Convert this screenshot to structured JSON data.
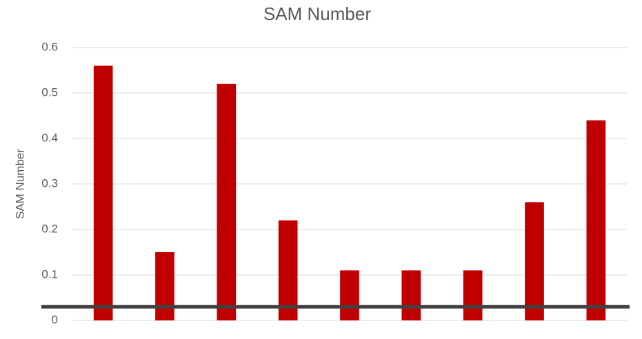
{
  "chart_data": {
    "type": "bar",
    "title": "SAM Number",
    "y_label": "SAM Number",
    "categories": [
      null,
      null,
      null,
      null,
      null,
      null,
      null,
      null,
      null
    ],
    "values": [
      0.56,
      0.15,
      0.52,
      0.22,
      0.11,
      0.11,
      0.11,
      0.26,
      0.44
    ],
    "color": "#c00000",
    "ylim": [
      0,
      0.6
    ],
    "yticks": [
      0,
      0.1,
      0.2,
      0.3,
      0.4,
      0.5,
      0.6
    ],
    "grid": true,
    "reference_line": {
      "value": 0.03,
      "color": "#404040"
    }
  }
}
